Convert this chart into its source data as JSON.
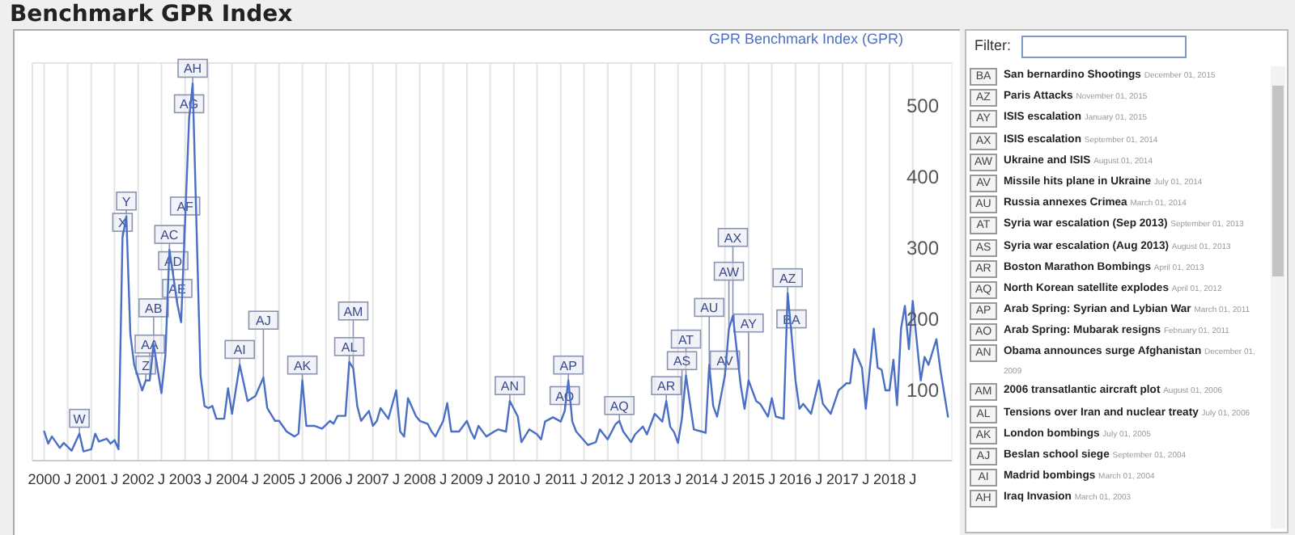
{
  "chart_data": {
    "type": "line",
    "title": "Benchmark GPR Index",
    "legend": "top right",
    "grid": true,
    "xlim": [
      "1999-10",
      "2019-05"
    ],
    "xticks": [
      "2000",
      {
        "value": "2000-07",
        "label": "J"
      },
      "2001",
      {
        "value": "2001-07",
        "label": "J"
      },
      "2002",
      {
        "value": "2002-07",
        "label": "J"
      },
      "2003",
      {
        "value": "2003-07",
        "label": "J"
      },
      "2004",
      {
        "value": "2004-07",
        "label": "J"
      },
      "2005",
      {
        "value": "2005-07",
        "label": "J"
      },
      "2006",
      {
        "value": "2006-07",
        "label": "J"
      },
      "2007",
      {
        "value": "2007-07",
        "label": "J"
      },
      "2008",
      {
        "value": "2008-07",
        "label": "J"
      },
      "2009",
      {
        "value": "2009-07",
        "label": "J"
      },
      "2010",
      {
        "value": "2010-07",
        "label": "J"
      },
      "2011",
      {
        "value": "2011-07",
        "label": "J"
      },
      "2012",
      {
        "value": "2012-07",
        "label": "J"
      },
      "2013",
      {
        "value": "2013-07",
        "label": "J"
      },
      "2014",
      {
        "value": "2014-07",
        "label": "J"
      },
      "2015",
      {
        "value": "2015-07",
        "label": "J"
      },
      "2016",
      {
        "value": "2016-07",
        "label": "J"
      },
      "2017",
      {
        "value": "2017-07",
        "label": "J"
      },
      "2018",
      {
        "value": "2018-07",
        "label": "J"
      }
    ],
    "ylim": [
      0,
      560
    ],
    "yticks": [
      100,
      200,
      300,
      400,
      500
    ],
    "x": [
      "2000-01",
      "2000-02",
      "2000-03",
      "2000-05",
      "2000-06",
      "2000-08",
      "2000-10",
      "2000-11",
      "2001-01",
      "2001-02",
      "2001-03",
      "2001-05",
      "2001-06",
      "2001-07",
      "2001-08",
      "2001-09",
      "2001-10",
      "2001-11",
      "2001-12",
      "2002-02",
      "2002-03",
      "2002-04",
      "2002-05",
      "2002-07",
      "2002-08",
      "2002-09",
      "2002-10",
      "2002-11",
      "2002-12",
      "2003-01",
      "2003-02",
      "2003-03",
      "2003-04",
      "2003-05",
      "2003-06",
      "2003-07",
      "2003-08",
      "2003-09",
      "2003-11",
      "2003-12",
      "2004-01",
      "2004-03",
      "2004-05",
      "2004-07",
      "2004-09",
      "2004-10",
      "2004-12",
      "2005-01",
      "2005-03",
      "2005-05",
      "2005-06",
      "2005-07",
      "2005-08",
      "2005-10",
      "2005-12",
      "2006-02",
      "2006-03",
      "2006-04",
      "2006-06",
      "2006-07",
      "2006-08",
      "2006-09",
      "2006-10",
      "2006-12",
      "2007-01",
      "2007-02",
      "2007-03",
      "2007-05",
      "2007-07",
      "2007-08",
      "2007-09",
      "2007-10",
      "2007-12",
      "2008-01",
      "2008-03",
      "2008-04",
      "2008-05",
      "2008-07",
      "2008-08",
      "2008-09",
      "2008-11",
      "2009-01",
      "2009-02",
      "2009-03",
      "2009-04",
      "2009-06",
      "2009-08",
      "2009-09",
      "2009-11",
      "2009-12",
      "2010-02",
      "2010-03",
      "2010-05",
      "2010-07",
      "2010-08",
      "2010-09",
      "2010-11",
      "2011-01",
      "2011-02",
      "2011-03",
      "2011-04",
      "2011-05",
      "2011-08",
      "2011-10",
      "2011-11",
      "2012-01",
      "2012-03",
      "2012-04",
      "2012-05",
      "2012-07",
      "2012-08",
      "2012-10",
      "2012-11",
      "2013-01",
      "2013-03",
      "2013-04",
      "2013-05",
      "2013-06",
      "2013-07",
      "2013-08",
      "2013-09",
      "2013-11",
      "2014-01",
      "2014-02",
      "2014-03",
      "2014-04",
      "2014-05",
      "2014-07",
      "2014-08",
      "2014-09",
      "2014-11",
      "2014-12",
      "2015-01",
      "2015-03",
      "2015-04",
      "2015-06",
      "2015-07",
      "2015-08",
      "2015-10",
      "2015-11",
      "2015-12",
      "2016-01",
      "2016-02",
      "2016-03",
      "2016-05",
      "2016-07",
      "2016-08",
      "2016-10",
      "2016-12",
      "2017-02",
      "2017-03",
      "2017-04",
      "2017-06",
      "2017-07",
      "2017-09",
      "2017-10",
      "2017-11",
      "2017-12",
      "2018-01",
      "2018-02",
      "2018-03",
      "2018-04",
      "2018-05",
      "2018-06",
      "2018-07",
      "2018-09",
      "2018-10",
      "2018-11",
      "2019-01",
      "2019-02",
      "2019-04"
    ],
    "series": [
      {
        "name": "GPR Benchmark Index (GPR)",
        "color": "#4a6fc4",
        "values": [
          41,
          24,
          34,
          18,
          25,
          14,
          38,
          13,
          16,
          38,
          27,
          31,
          24,
          29,
          16,
          314,
          344,
          178,
          135,
          99,
          113,
          113,
          164,
          95,
          149,
          297,
          260,
          221,
          195,
          337,
          481,
          531,
          322,
          120,
          77,
          74,
          77,
          59,
          59,
          102,
          66,
          135,
          84,
          91,
          117,
          74,
          56,
          56,
          41,
          34,
          38,
          113,
          49,
          49,
          45,
          56,
          52,
          63,
          63,
          139,
          130,
          77,
          56,
          70,
          49,
          56,
          74,
          59,
          99,
          41,
          34,
          88,
          63,
          56,
          52,
          41,
          34,
          56,
          81,
          41,
          41,
          56,
          41,
          31,
          49,
          34,
          41,
          44,
          41,
          84,
          62,
          26,
          44,
          37,
          30,
          55,
          61,
          55,
          70,
          113,
          55,
          41,
          22,
          26,
          44,
          30,
          51,
          56,
          41,
          26,
          37,
          48,
          37,
          66,
          55,
          84,
          48,
          40,
          25,
          60,
          120,
          44,
          41,
          39,
          135,
          77,
          62,
          120,
          186,
          204,
          106,
          73,
          113,
          84,
          80,
          62,
          88,
          62,
          59,
          236,
          178,
          113,
          73,
          80,
          66,
          113,
          80,
          66,
          99,
          109,
          109,
          157,
          131,
          73,
          186,
          131,
          128,
          99,
          99,
          142,
          78,
          186,
          218,
          157,
          225,
          113,
          146,
          135,
          171,
          128,
          62
        ]
      }
    ],
    "annotations": [
      {
        "text": "W",
        "x": "2000-10",
        "y": 38
      },
      {
        "text": "X",
        "x": "2001-09",
        "y": 314
      },
      {
        "text": "Y",
        "x": "2001-10",
        "y": 344
      },
      {
        "text": "Z",
        "x": "2002-03",
        "y": 113
      },
      {
        "text": "AA",
        "x": "2002-04",
        "y": 113
      },
      {
        "text": "AB",
        "x": "2002-05",
        "y": 164
      },
      {
        "text": "AC",
        "x": "2002-09",
        "y": 297
      },
      {
        "text": "AD",
        "x": "2002-10",
        "y": 260
      },
      {
        "text": "AE",
        "x": "2002-11",
        "y": 221
      },
      {
        "text": "AF",
        "x": "2003-01",
        "y": 337
      },
      {
        "text": "AG",
        "x": "2003-02",
        "y": 481
      },
      {
        "text": "AH",
        "x": "2003-03",
        "y": 531
      },
      {
        "text": "AI",
        "x": "2004-03",
        "y": 135
      },
      {
        "text": "AJ",
        "x": "2004-09",
        "y": 117
      },
      {
        "text": "AK",
        "x": "2005-07",
        "y": 113
      },
      {
        "text": "AL",
        "x": "2006-07",
        "y": 139
      },
      {
        "text": "AM",
        "x": "2006-08",
        "y": 130
      },
      {
        "text": "AN",
        "x": "2009-12",
        "y": 84
      },
      {
        "text": "AO",
        "x": "2011-02",
        "y": 70
      },
      {
        "text": "AP",
        "x": "2011-03",
        "y": 113
      },
      {
        "text": "AQ",
        "x": "2012-04",
        "y": 56
      },
      {
        "text": "AR",
        "x": "2013-04",
        "y": 84
      },
      {
        "text": "AS",
        "x": "2013-08",
        "y": 60
      },
      {
        "text": "AT",
        "x": "2013-09",
        "y": 120
      },
      {
        "text": "AU",
        "x": "2014-03",
        "y": 135
      },
      {
        "text": "AV",
        "x": "2014-07",
        "y": 120
      },
      {
        "text": "AW",
        "x": "2014-08",
        "y": 186
      },
      {
        "text": "AX",
        "x": "2014-09",
        "y": 204
      },
      {
        "text": "AY",
        "x": "2015-01",
        "y": 113
      },
      {
        "text": "AZ",
        "x": "2015-11",
        "y": 236
      },
      {
        "text": "BA",
        "x": "2015-12",
        "y": 178
      },
      "Filter:",
      "BA San bernardino Shootings December 01, 2015",
      "AZ Paris Attacks November 01, 2015",
      "AY ISIS escalation January 01, 2015",
      "AX ISIS escalation September 01, 2014",
      "AW Ukraine and ISIS August 01, 2014",
      "AV Missile hits plane in Ukraine July 01, 2014",
      "AU Russia annexes Crimea March 01, 2014",
      "AT Syria war escalation (Sep 2013) September 01, 2013",
      "AS Syria war escalation (Aug 2013) August 01, 2013",
      "AR Boston Marathon Bombings April 01, 2013",
      "AQ North Korean satellite explodes April 01, 2012",
      "AP Arab Spring: Syrian and Lybian War March 01, 2011",
      "AO Arab Spring: Mubarak resigns February 01, 2011",
      "AN Obama announces surge Afghanistan December 01, 2009",
      "AM 2006 transatlantic aircraft plot August 01, 2006",
      "AL Tensions over Iran and nuclear treaty July 01, 2006",
      "AK London bombings July 01, 2005",
      "AJ Beslan school siege September 01, 2004",
      "AI Madrid bombings March 01, 2004",
      "AH Iraq Invasion March 01, 2003"
    ]
  }
}
